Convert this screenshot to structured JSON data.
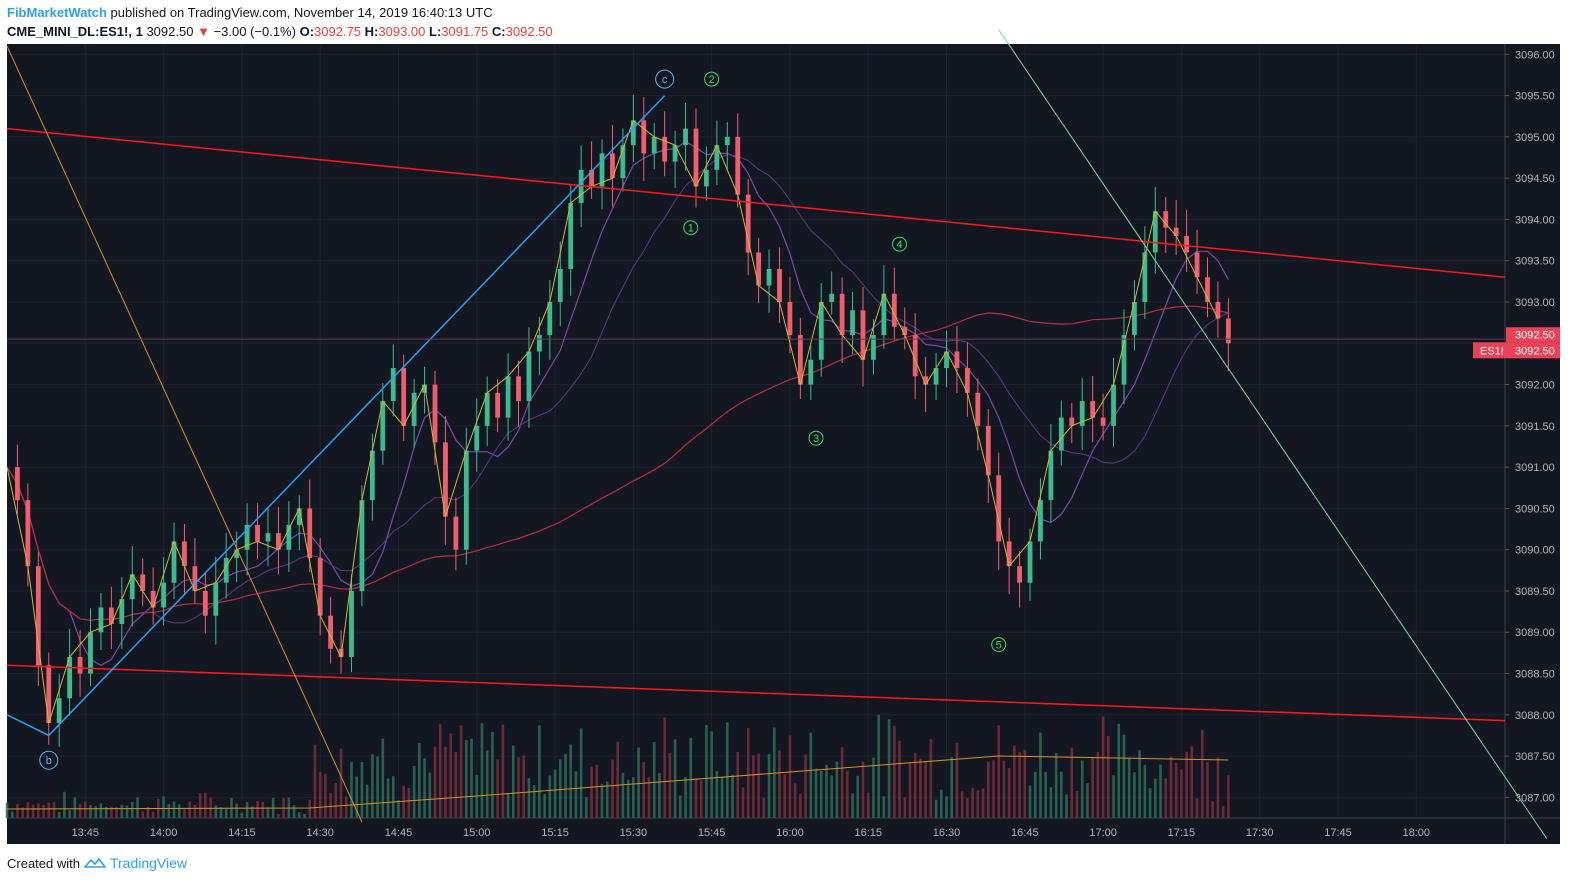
{
  "header": {
    "author": "FibMarketWatch",
    "published": "published on TradingView.com, November 14, 2019 16:40:13 UTC",
    "symbol": "CME_MINI_DL:ES1!, 1",
    "last_price": "3092.50",
    "change": "−3.00 (−0.1%)",
    "o_label": "O:",
    "o_value": "3092.75",
    "h_label": "H:",
    "h_value": "3093.00",
    "l_label": "L:",
    "l_value": "3091.75",
    "c_label": "C:",
    "c_value": "3092.50"
  },
  "footer": {
    "created_with": "Created with",
    "brand": "TradingView"
  },
  "colors": {
    "background": "#131722",
    "grid": "#1e2230",
    "up": "#3dbb8d",
    "down": "#ef5f6b",
    "trend_red": "#ff1a1a",
    "wave_yellow": "#c9b93a",
    "impulse_blue": "#2e9ef0",
    "green_line": "#7fd7a0",
    "orange_line": "#d9902b",
    "ma_purple": "#7b4aa8",
    "ma_red": "#b52f3c",
    "label_green": "#3ddc5b",
    "label_blue": "#5fb4f0",
    "tag_red": "#e94256"
  },
  "chart_data": {
    "type": "candlestick",
    "symbol": "ES1!",
    "interval": "1",
    "ylim": [
      3086.75,
      3096.125
    ],
    "y_ticks": [
      "3096.00",
      "3095.50",
      "3095.00",
      "3094.50",
      "3094.00",
      "3093.50",
      "3093.00",
      "3092.50",
      "3092.00",
      "3091.50",
      "3091.00",
      "3090.50",
      "3090.00",
      "3089.50",
      "3089.00",
      "3088.50",
      "3088.00",
      "3087.50",
      "3087.00"
    ],
    "x_ticks": [
      "13:45",
      "14:00",
      "14:15",
      "14:30",
      "14:45",
      "15:00",
      "15:15",
      "15:30",
      "15:45",
      "16:00",
      "16:15",
      "16:30",
      "16:45",
      "17:00",
      "17:15",
      "17:30",
      "17:45",
      "18:00"
    ],
    "x_range_minutes": [
      810,
      1097
    ],
    "last_price_tag": "3092.50",
    "symbol_tag": "ES1!",
    "price_path": [
      [
        810,
        3091.0
      ],
      [
        812,
        3090.6
      ],
      [
        814,
        3089.8
      ],
      [
        816,
        3088.6
      ],
      [
        818,
        3087.9
      ],
      [
        820,
        3088.2
      ],
      [
        822,
        3088.7
      ],
      [
        824,
        3088.5
      ],
      [
        826,
        3089.0
      ],
      [
        828,
        3089.3
      ],
      [
        830,
        3089.1
      ],
      [
        832,
        3089.4
      ],
      [
        834,
        3089.7
      ],
      [
        836,
        3089.5
      ],
      [
        838,
        3089.3
      ],
      [
        840,
        3089.6
      ],
      [
        842,
        3090.1
      ],
      [
        844,
        3089.8
      ],
      [
        846,
        3089.5
      ],
      [
        848,
        3089.2
      ],
      [
        850,
        3089.6
      ],
      [
        852,
        3089.9
      ],
      [
        854,
        3090.0
      ],
      [
        856,
        3090.3
      ],
      [
        858,
        3090.1
      ],
      [
        860,
        3090.2
      ],
      [
        862,
        3090.0
      ],
      [
        864,
        3090.3
      ],
      [
        866,
        3090.5
      ],
      [
        868,
        3089.9
      ],
      [
        870,
        3089.2
      ],
      [
        872,
        3088.8
      ],
      [
        874,
        3088.7
      ],
      [
        876,
        3089.5
      ],
      [
        878,
        3090.6
      ],
      [
        880,
        3091.2
      ],
      [
        882,
        3091.8
      ],
      [
        884,
        3092.2
      ],
      [
        886,
        3091.5
      ],
      [
        888,
        3091.9
      ],
      [
        890,
        3092.0
      ],
      [
        892,
        3091.3
      ],
      [
        894,
        3090.4
      ],
      [
        896,
        3090.0
      ],
      [
        898,
        3091.2
      ],
      [
        900,
        3091.5
      ],
      [
        902,
        3091.9
      ],
      [
        904,
        3091.6
      ],
      [
        906,
        3092.1
      ],
      [
        908,
        3091.8
      ],
      [
        910,
        3092.4
      ],
      [
        912,
        3092.6
      ],
      [
        914,
        3093.0
      ],
      [
        916,
        3093.4
      ],
      [
        918,
        3094.2
      ],
      [
        920,
        3094.6
      ],
      [
        922,
        3094.4
      ],
      [
        924,
        3094.8
      ],
      [
        926,
        3094.5
      ],
      [
        928,
        3094.9
      ],
      [
        930,
        3095.2
      ],
      [
        932,
        3094.8
      ],
      [
        934,
        3095.0
      ],
      [
        936,
        3094.7
      ],
      [
        938,
        3094.9
      ],
      [
        940,
        3095.1
      ],
      [
        942,
        3094.4
      ],
      [
        944,
        3094.6
      ],
      [
        946,
        3094.9
      ],
      [
        948,
        3095.0
      ],
      [
        950,
        3094.3
      ],
      [
        952,
        3093.6
      ],
      [
        954,
        3093.2
      ],
      [
        956,
        3093.4
      ],
      [
        958,
        3093.0
      ],
      [
        960,
        3092.6
      ],
      [
        962,
        3092.0
      ],
      [
        964,
        3092.3
      ],
      [
        966,
        3093.0
      ],
      [
        968,
        3093.1
      ],
      [
        970,
        3092.6
      ],
      [
        972,
        3092.9
      ],
      [
        974,
        3092.3
      ],
      [
        976,
        3092.6
      ],
      [
        978,
        3093.1
      ],
      [
        980,
        3092.7
      ],
      [
        982,
        3092.6
      ],
      [
        984,
        3092.1
      ],
      [
        986,
        3092.0
      ],
      [
        988,
        3092.2
      ],
      [
        990,
        3092.4
      ],
      [
        992,
        3092.2
      ],
      [
        994,
        3091.9
      ],
      [
        996,
        3091.5
      ],
      [
        998,
        3090.9
      ],
      [
        1000,
        3090.1
      ],
      [
        1002,
        3089.8
      ],
      [
        1004,
        3089.6
      ],
      [
        1006,
        3090.1
      ],
      [
        1008,
        3090.6
      ],
      [
        1010,
        3091.2
      ],
      [
        1012,
        3091.6
      ],
      [
        1014,
        3091.5
      ],
      [
        1016,
        3091.8
      ],
      [
        1018,
        3091.6
      ],
      [
        1020,
        3091.5
      ],
      [
        1022,
        3092.0
      ],
      [
        1024,
        3092.6
      ],
      [
        1026,
        3093.0
      ],
      [
        1028,
        3093.6
      ],
      [
        1030,
        3094.1
      ],
      [
        1032,
        3093.9
      ],
      [
        1034,
        3093.8
      ],
      [
        1036,
        3093.6
      ],
      [
        1038,
        3093.3
      ],
      [
        1040,
        3093.0
      ],
      [
        1042,
        3092.8
      ],
      [
        1044,
        3092.5
      ]
    ],
    "volume_max_display": 1
  }
}
